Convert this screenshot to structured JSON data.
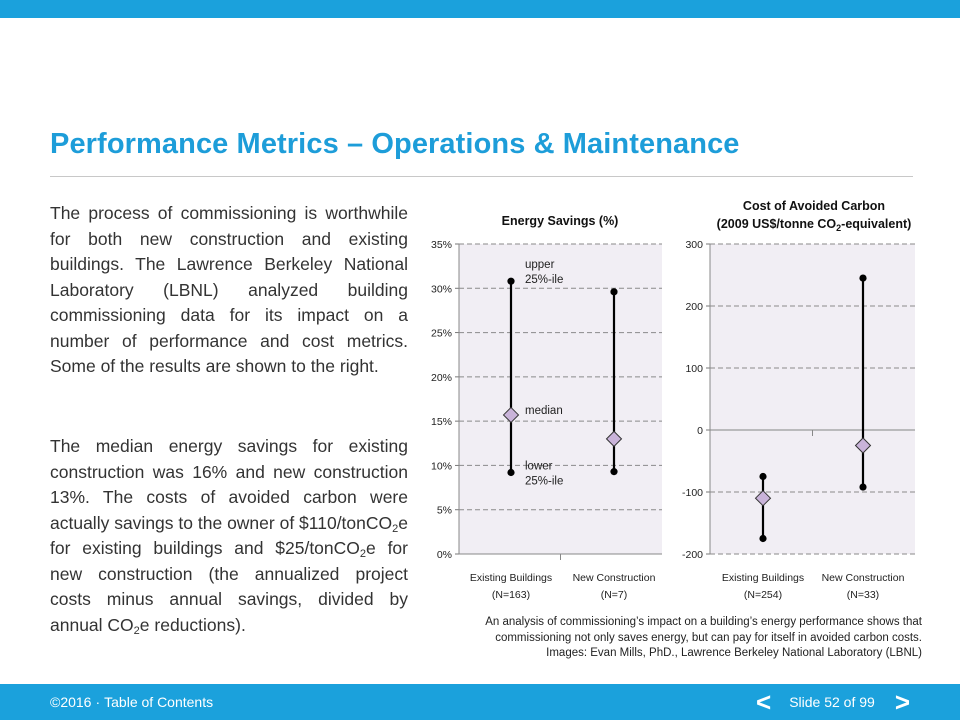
{
  "slide": {
    "title": "Performance Metrics – Operations & Maintenance",
    "para1": "The process of commissioning is worthwhile for both new construction and existing buildings. The Lawrence Berkeley National Laboratory (LBNL) analyzed building commissioning data for its impact on a number of performance and cost metrics. Some of the results are shown to the right.",
    "para2_a": "The median energy savings for existing construction was 16% and new construction 13%. The costs of avoided carbon were actually savings to the owner of $110/tonCO",
    "para2_sub1": "2",
    "para2_b": "e for existing buildings and $25/tonCO",
    "para2_sub2": "2",
    "para2_c": "e for new construction (the annualized project costs minus annual savings, divided by annual CO",
    "para2_sub3": "2",
    "para2_d": "e reductions).",
    "caption_line1": "An analysis of commissioning’s impact on a building’s energy performance shows that commissioning not only saves energy, but can pay for itself in avoided carbon costs.",
    "caption_line2": "Images: Evan Mills, PhD., Lawrence Berkeley National Laboratory (LBNL)"
  },
  "footer": {
    "copyright": "©2016",
    "separator": "·",
    "toc": "Table of Contents",
    "prev": "<",
    "next": ">",
    "slide_label": "Slide 52 of 99"
  },
  "colors": {
    "accent": "#1ba1dc",
    "title": "#1d9dd9",
    "plot_bg": "#f1eef4",
    "marker_fill": "#c9b3d9"
  },
  "chart_data": [
    {
      "type": "range",
      "title": "Energy Savings (%)",
      "yticks": [
        "0%",
        "5%",
        "10%",
        "15%",
        "20%",
        "25%",
        "30%",
        "35%"
      ],
      "ylim": [
        0,
        35
      ],
      "grid": true,
      "categories": [
        {
          "label": "Existing Buildings",
          "n": "(N=163)",
          "lower": 9.2,
          "median": 15.7,
          "upper": 30.8
        },
        {
          "label": "New Construction",
          "n": "(N=7)",
          "lower": 9.3,
          "median": 13.0,
          "upper": 29.6
        }
      ],
      "annotations": {
        "upper": [
          "upper",
          "25%-ile"
        ],
        "median": [
          "median"
        ],
        "lower": [
          "lower",
          "25%-ile"
        ]
      }
    },
    {
      "type": "range",
      "title_line1": "Cost of Avoided Carbon",
      "title_line2_a": "(2009 US$/tonne CO",
      "title_line2_sub": "2",
      "title_line2_b": "-equivalent)",
      "yticks": [
        "-200",
        "-100",
        "0",
        "100",
        "200",
        "300"
      ],
      "ylim": [
        -200,
        300
      ],
      "grid": true,
      "categories": [
        {
          "label": "Existing Buildings",
          "n": "(N=254)",
          "lower": -175,
          "median": -110,
          "upper": -75
        },
        {
          "label": "New Construction",
          "n": "(N=33)",
          "lower": -92,
          "median": -25,
          "upper": 245
        }
      ]
    }
  ]
}
